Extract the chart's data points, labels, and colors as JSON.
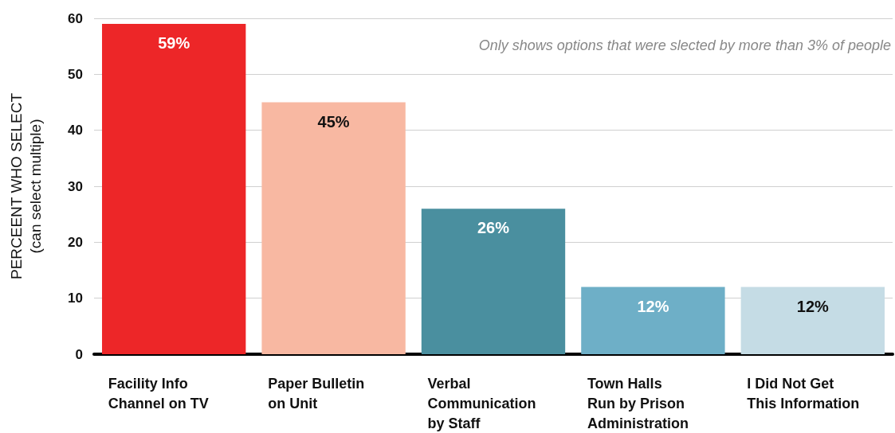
{
  "chart_data": {
    "type": "bar",
    "ylabel": "PERCEENT WHO SELECT\n(can select multiple)",
    "categories": [
      "Facility Info\nChannel on TV",
      "Paper Bulletin\non Unit",
      "Verbal\nCommunication\nby Staff",
      "Town Halls\nRun by Prison\nAdministration",
      "I Did Not Get\nThis Information"
    ],
    "values": [
      59,
      45,
      26,
      12,
      12
    ],
    "value_labels": [
      "59%",
      "45%",
      "26%",
      "12%",
      "12%"
    ],
    "colors": [
      "#ed2628",
      "#f8b8a2",
      "#4a8f9f",
      "#6eafc7",
      "#c5dce5"
    ],
    "ylim": [
      0,
      60
    ],
    "yticks": [
      0,
      10,
      20,
      30,
      40,
      50,
      60
    ],
    "grid": "y",
    "annotations": [
      "Only shows options that were slected by more than 3% of people"
    ]
  }
}
